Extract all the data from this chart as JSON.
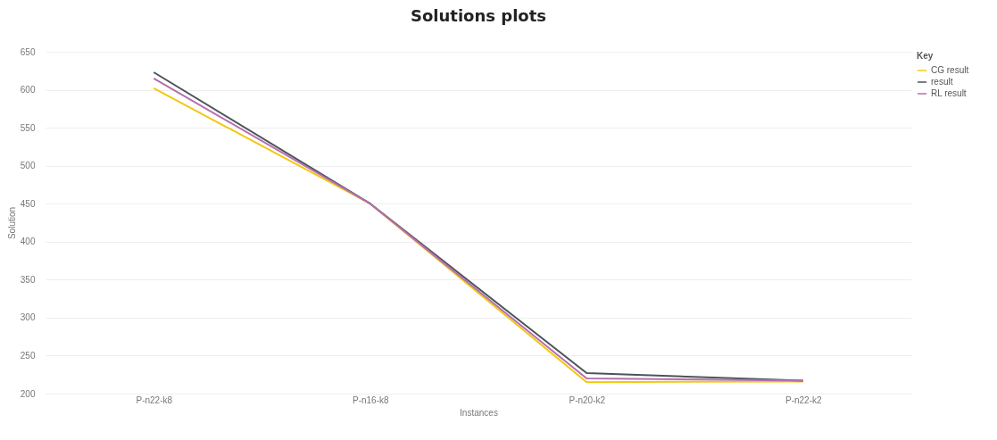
{
  "chart_data": {
    "type": "line",
    "title": "Solutions plots",
    "xlabel": "Instances",
    "ylabel": "Solution",
    "legend_title": "Key",
    "categories": [
      "P-n22-k8",
      "P-n16-k8",
      "P-n20-k2",
      "P-n22-k2"
    ],
    "series": [
      {
        "name": "CG result",
        "color": "#f2c811",
        "values": [
          602,
          450,
          215,
          216
        ]
      },
      {
        "name": "result",
        "color": "#4a5459",
        "values": [
          623,
          450,
          227,
          217
        ]
      },
      {
        "name": "RL result",
        "color": "#b56fb0",
        "values": [
          615,
          450,
          220,
          217
        ]
      }
    ],
    "ylim": [
      200,
      650
    ],
    "yticks": [
      200,
      250,
      300,
      350,
      400,
      450,
      500,
      550,
      600,
      650
    ],
    "grid": "y",
    "legend": "top right",
    "marker": "none",
    "line_style": "solid"
  }
}
